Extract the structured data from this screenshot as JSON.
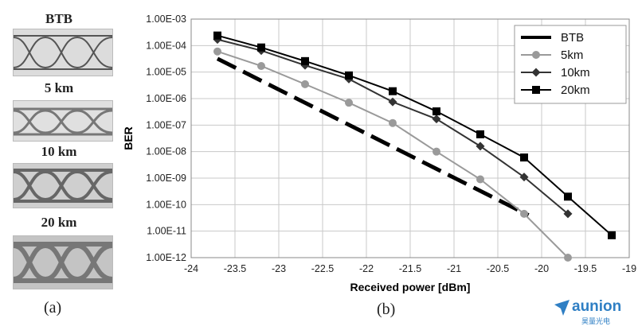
{
  "eye_panel": {
    "labels": [
      "BTB",
      "5 km",
      "10 km",
      "20 km"
    ],
    "caption": "(a)"
  },
  "chart_caption": "(b)",
  "logo": {
    "text": "aunion",
    "sub": "昊量光电"
  },
  "chart_data": {
    "type": "line",
    "title": "",
    "xlabel": "Received power [dBm]",
    "ylabel": "BER",
    "xlim": [
      -24,
      -19
    ],
    "x_ticks": [
      "-24",
      "-23.5",
      "-23",
      "-22.5",
      "-22",
      "-21.5",
      "-21",
      "-20.5",
      "-20",
      "-19.5",
      "-19"
    ],
    "y_log_scale": true,
    "ylim": [
      1e-12,
      0.001
    ],
    "y_ticks": [
      "1.00E-03",
      "1.00E-04",
      "1.00E-05",
      "1.00E-06",
      "1.00E-07",
      "1.00E-08",
      "1.00E-09",
      "1.00E-10",
      "1.00E-11",
      "1.00E-12"
    ],
    "grid": true,
    "legend_position": "top-right",
    "series": [
      {
        "name": "BTB",
        "style": "dashed",
        "color": "#000000",
        "marker": "none",
        "points": [
          [
            -23.7,
            3.2e-05
          ],
          [
            -20.15,
            4e-11
          ]
        ]
      },
      {
        "name": "5km",
        "style": "solid",
        "color": "#9a9a9a",
        "marker": "circle",
        "points": [
          [
            -23.7,
            6e-05
          ],
          [
            -23.2,
            1.7e-05
          ],
          [
            -22.7,
            3.5e-06
          ],
          [
            -22.2,
            7e-07
          ],
          [
            -21.7,
            1.2e-07
          ],
          [
            -21.2,
            1e-08
          ],
          [
            -20.7,
            9e-10
          ],
          [
            -20.2,
            4.5e-11
          ],
          [
            -19.7,
            1e-12
          ]
        ]
      },
      {
        "name": "10km",
        "style": "solid",
        "color": "#333333",
        "marker": "diamond",
        "points": [
          [
            -23.7,
            0.00017
          ],
          [
            -23.2,
            6.5e-05
          ],
          [
            -22.7,
            1.8e-05
          ],
          [
            -22.2,
            5.5e-06
          ],
          [
            -21.7,
            7.5e-07
          ],
          [
            -21.2,
            1.7e-07
          ],
          [
            -20.7,
            1.6e-08
          ],
          [
            -20.2,
            1.1e-09
          ],
          [
            -19.7,
            4.5e-11
          ]
        ]
      },
      {
        "name": "20km",
        "style": "solid",
        "color": "#000000",
        "marker": "square",
        "points": [
          [
            -23.7,
            0.00024
          ],
          [
            -23.2,
            8.5e-05
          ],
          [
            -22.7,
            2.6e-05
          ],
          [
            -22.2,
            7.5e-06
          ],
          [
            -21.7,
            1.9e-06
          ],
          [
            -21.2,
            3.3e-07
          ],
          [
            -20.7,
            4.5e-08
          ],
          [
            -20.2,
            6e-09
          ],
          [
            -19.7,
            2e-10
          ],
          [
            -19.2,
            7e-12
          ]
        ]
      }
    ]
  }
}
